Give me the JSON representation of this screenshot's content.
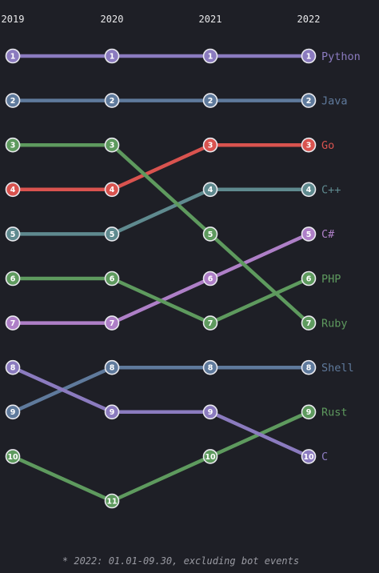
{
  "chart_data": {
    "type": "bump",
    "x": [
      "2019",
      "2020",
      "2021",
      "2022"
    ],
    "y_direction": "rank, 1 at top",
    "series": [
      {
        "name": "Python",
        "color": "#8b7bbf",
        "ranks": [
          1,
          1,
          1,
          1
        ]
      },
      {
        "name": "Java",
        "color": "#5f7a9c",
        "ranks": [
          2,
          2,
          2,
          2
        ]
      },
      {
        "name": "Go",
        "color": "#d9534f",
        "ranks": [
          4,
          4,
          3,
          3
        ]
      },
      {
        "name": "C++",
        "color": "#5f8a8f",
        "ranks": [
          5,
          5,
          4,
          4
        ]
      },
      {
        "name": "C#",
        "color": "#ae7fc7",
        "ranks": [
          7,
          7,
          6,
          5
        ]
      },
      {
        "name": "PHP",
        "color": "#5e9a5e",
        "ranks": [
          6,
          6,
          7,
          6
        ]
      },
      {
        "name": "Ruby",
        "color": "#5e9a5e",
        "ranks": [
          3,
          3,
          5,
          7
        ]
      },
      {
        "name": "Shell",
        "color": "#5f7a9c",
        "ranks": [
          9,
          8,
          8,
          8
        ]
      },
      {
        "name": "Rust",
        "color": "#5e9a5e",
        "ranks": [
          10,
          11,
          10,
          9
        ]
      },
      {
        "name": "C",
        "color": "#8b7bbf",
        "ranks": [
          8,
          9,
          9,
          10
        ]
      }
    ],
    "footnote": "* 2022: 01.01-09.30, excluding bot events"
  }
}
